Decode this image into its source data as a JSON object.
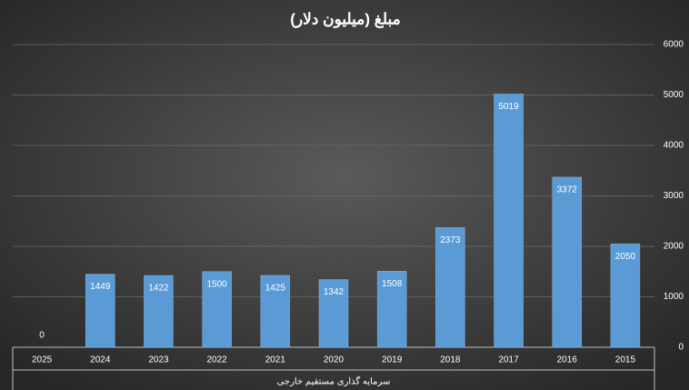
{
  "chart_data": {
    "type": "bar",
    "title": "مبلغ (میلیون دلار)",
    "x_label": "سرمایه گذاری مستقیم خارجی",
    "categories": [
      "2025",
      "2024",
      "2023",
      "2022",
      "2021",
      "2020",
      "2019",
      "2018",
      "2017",
      "2016",
      "2015"
    ],
    "values": [
      0,
      1449,
      1422,
      1500,
      1425,
      1342,
      1508,
      2373,
      5019,
      3372,
      2050
    ],
    "color": "#5b9bd5",
    "ylim": [
      0,
      6000
    ],
    "yticks": [
      0,
      1000,
      2000,
      3000,
      4000,
      5000,
      6000
    ],
    "grid": true,
    "y_axis_side": "right"
  }
}
